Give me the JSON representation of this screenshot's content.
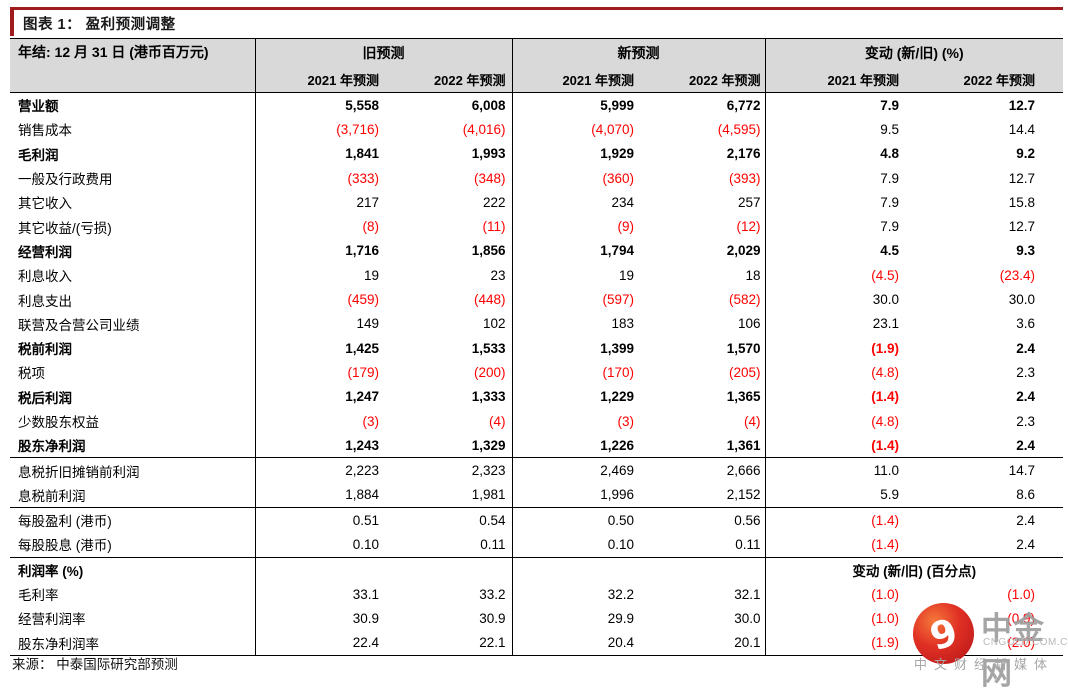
{
  "page": {
    "title": "图表 1： 盈利预测调整",
    "source": "来源： 中泰国际研究部预测",
    "accent_color": "#9e1b1e",
    "negative_color": "#fe0000",
    "header_bg": "#d9d9d9"
  },
  "table": {
    "row_header": "年结: 12 月 31 日 (港币百万元)",
    "sections": [
      {
        "label": "旧预测"
      },
      {
        "label": "新预测"
      },
      {
        "label": "变动 (新/旧) (%)"
      }
    ],
    "sub_headers": [
      "2021 年预测",
      "2022 年预测",
      "2021 年预测",
      "2022 年预测",
      "2021 年预测",
      "2022 年预测"
    ],
    "rows": [
      {
        "label": "营业额",
        "bold": true,
        "values": [
          "5,558",
          "6,008",
          "5,999",
          "6,772",
          "7.9",
          "12.7"
        ]
      },
      {
        "label": "销售成本",
        "values": [
          "(3,716)",
          "(4,016)",
          "(4,070)",
          "(4,595)",
          "9.5",
          "14.4"
        ]
      },
      {
        "label": "毛利润",
        "bold": true,
        "values": [
          "1,841",
          "1,993",
          "1,929",
          "2,176",
          "4.8",
          "9.2"
        ]
      },
      {
        "label": "一般及行政费用",
        "values": [
          "(333)",
          "(348)",
          "(360)",
          "(393)",
          "7.9",
          "12.7"
        ]
      },
      {
        "label": "其它收入",
        "values": [
          "217",
          "222",
          "234",
          "257",
          "7.9",
          "15.8"
        ]
      },
      {
        "label": "其它收益/(亏损)",
        "values": [
          "(8)",
          "(11)",
          "(9)",
          "(12)",
          "7.9",
          "12.7"
        ]
      },
      {
        "label": "经营利润",
        "bold": true,
        "values": [
          "1,716",
          "1,856",
          "1,794",
          "2,029",
          "4.5",
          "9.3"
        ]
      },
      {
        "label": "利息收入",
        "values": [
          "19",
          "23",
          "19",
          "18",
          "(4.5)",
          "(23.4)"
        ]
      },
      {
        "label": "利息支出",
        "values": [
          "(459)",
          "(448)",
          "(597)",
          "(582)",
          "30.0",
          "30.0"
        ]
      },
      {
        "label": "联营及合营公司业绩",
        "values": [
          "149",
          "102",
          "183",
          "106",
          "23.1",
          "3.6"
        ]
      },
      {
        "label": "税前利润",
        "bold": true,
        "values": [
          "1,425",
          "1,533",
          "1,399",
          "1,570",
          "(1.9)",
          "2.4"
        ]
      },
      {
        "label": "税项",
        "values": [
          "(179)",
          "(200)",
          "(170)",
          "(205)",
          "(4.8)",
          "2.3"
        ]
      },
      {
        "label": "税后利润",
        "bold": true,
        "values": [
          "1,247",
          "1,333",
          "1,229",
          "1,365",
          "(1.4)",
          "2.4"
        ]
      },
      {
        "label": "少数股东权益",
        "values": [
          "(3)",
          "(4)",
          "(3)",
          "(4)",
          "(4.8)",
          "2.3"
        ]
      },
      {
        "label": "股东净利润",
        "bold": true,
        "rule_below": true,
        "values": [
          "1,243",
          "1,329",
          "1,226",
          "1,361",
          "(1.4)",
          "2.4"
        ]
      },
      {
        "label": "息税折旧摊销前利润",
        "values": [
          "2,223",
          "2,323",
          "2,469",
          "2,666",
          "11.0",
          "14.7"
        ]
      },
      {
        "label": "息税前利润",
        "rule_below": true,
        "values": [
          "1,884",
          "1,981",
          "1,996",
          "2,152",
          "5.9",
          "8.6"
        ]
      },
      {
        "label": "每股盈利 (港币)",
        "values": [
          "0.51",
          "0.54",
          "0.50",
          "0.56",
          "(1.4)",
          "2.4"
        ]
      },
      {
        "label": "每股股息 (港币)",
        "rule_below": true,
        "values": [
          "0.10",
          "0.11",
          "0.10",
          "0.11",
          "(1.4)",
          "2.4"
        ]
      },
      {
        "label": "利润率 (%)",
        "bold": true,
        "span_note": "变动 (新/旧) (百分点)",
        "values": [
          "",
          "",
          "",
          "",
          "",
          ""
        ]
      },
      {
        "label": "毛利率",
        "values": [
          "33.1",
          "33.2",
          "32.2",
          "32.1",
          "(1.0)",
          "(1.0)"
        ]
      },
      {
        "label": "经营利润率",
        "values": [
          "30.9",
          "30.9",
          "29.9",
          "30.0",
          "(1.0)",
          "(0.9)"
        ]
      },
      {
        "label": "股东净利润率",
        "rule_below": true,
        "values": [
          "22.4",
          "22.1",
          "20.4",
          "20.1",
          "(1.9)",
          "(2.0)"
        ]
      }
    ]
  },
  "watermark": {
    "brand": "中金网",
    "domain": "CNGOLD.COM.CN",
    "tagline": "中文财经新媒体"
  }
}
